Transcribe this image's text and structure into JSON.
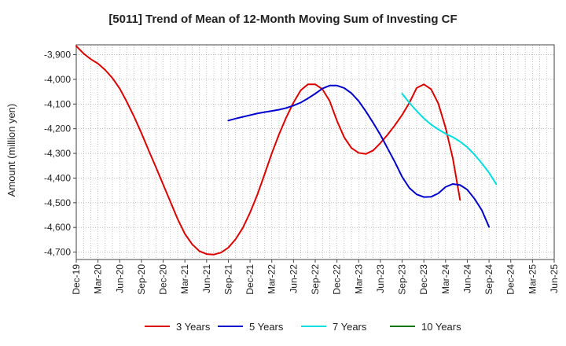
{
  "chart_data": {
    "type": "line",
    "title": "[5011]  Trend of Mean of 12-Month Moving Sum of Investing CF",
    "xlabel": "",
    "ylabel": "Amount (million yen)",
    "ylim": [
      -4730,
      -3860
    ],
    "yticks": [
      -3900,
      -4000,
      -4100,
      -4200,
      -4300,
      -4400,
      -4500,
      -4600,
      -4700
    ],
    "ytick_labels": [
      "-3,900",
      "-4,000",
      "-4,100",
      "-4,200",
      "-4,300",
      "-4,400",
      "-4,500",
      "-4,600",
      "-4,700"
    ],
    "x_start": "Dec-19",
    "xtick_labels": [
      "Dec-19",
      "Mar-20",
      "Jun-20",
      "Sep-20",
      "Dec-20",
      "Mar-21",
      "Jun-21",
      "Sep-21",
      "Dec-21",
      "Mar-22",
      "Jun-22",
      "Sep-22",
      "Dec-22",
      "Mar-23",
      "Jun-23",
      "Sep-23",
      "Dec-23",
      "Mar-24",
      "Jun-24",
      "Sep-24",
      "Dec-24",
      "Mar-25",
      "Jun-25"
    ],
    "x_count": 67,
    "grid": true,
    "legend_position": "bottom",
    "series": [
      {
        "name": "3 Years",
        "color": "#dd0000",
        "start_index": 0,
        "values": [
          -3865,
          -3895,
          -3918,
          -3936,
          -3962,
          -3995,
          -4037,
          -4092,
          -4152,
          -4218,
          -4288,
          -4356,
          -4426,
          -4496,
          -4566,
          -4626,
          -4668,
          -4696,
          -4708,
          -4710,
          -4702,
          -4682,
          -4648,
          -4602,
          -4540,
          -4468,
          -4385,
          -4300,
          -4223,
          -4154,
          -4094,
          -4044,
          -4020,
          -4020,
          -4040,
          -4088,
          -4168,
          -4235,
          -4278,
          -4298,
          -4302,
          -4288,
          -4258,
          -4224,
          -4186,
          -4144,
          -4095,
          -4035,
          -4020,
          -4040,
          -4098,
          -4196,
          -4320,
          -4488
        ]
      },
      {
        "name": "5 Years",
        "color": "#0000cc",
        "start_index": 21,
        "values": [
          -4167,
          -4159,
          -4152,
          -4145,
          -4138,
          -4133,
          -4128,
          -4123,
          -4116,
          -4106,
          -4094,
          -4077,
          -4058,
          -4037,
          -4025,
          -4025,
          -4035,
          -4056,
          -4088,
          -4130,
          -4176,
          -4225,
          -4280,
          -4335,
          -4395,
          -4440,
          -4466,
          -4477,
          -4476,
          -4462,
          -4436,
          -4424,
          -4428,
          -4447,
          -4484,
          -4530,
          -4598
        ]
      },
      {
        "name": "7 Years",
        "color": "#00dddd",
        "start_index": 45,
        "values": [
          -4058,
          -4095,
          -4128,
          -4158,
          -4183,
          -4203,
          -4220,
          -4234,
          -4252,
          -4275,
          -4305,
          -4340,
          -4378,
          -4425
        ]
      },
      {
        "name": "10 Years",
        "color": "#007700",
        "start_index": 0,
        "values": []
      }
    ]
  }
}
